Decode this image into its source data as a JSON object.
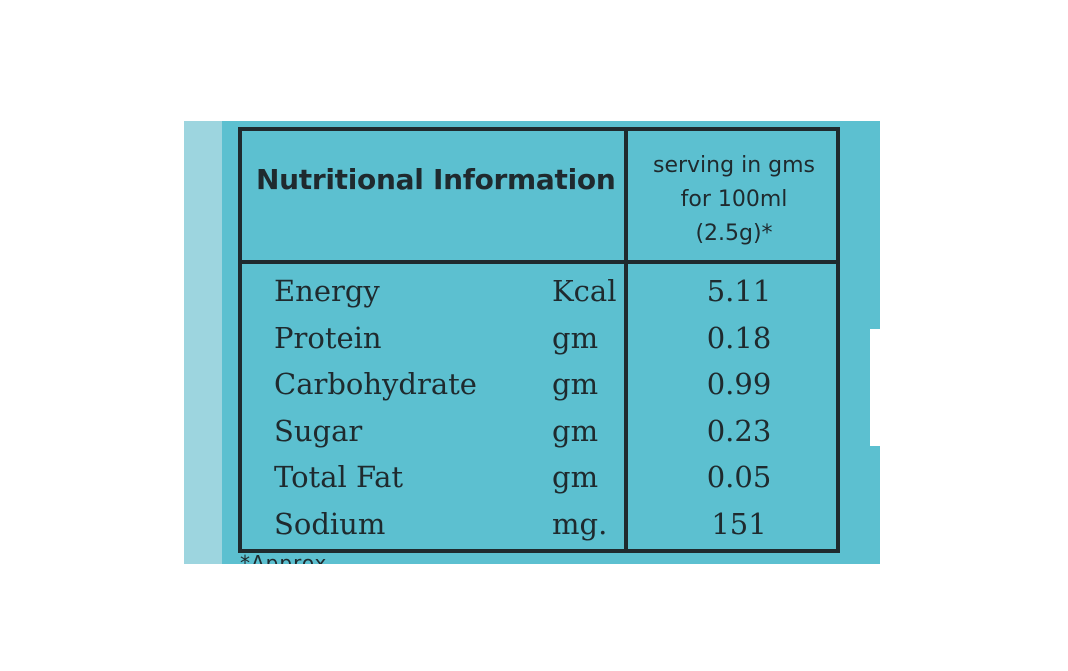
{
  "header": {
    "title": "Nutritional Information",
    "serving_line1": "serving in gms",
    "serving_line2": "for 100ml",
    "serving_line3": "(2.5g)*"
  },
  "rows": [
    {
      "name": "Energy",
      "unit": "Kcal",
      "value": "5.11"
    },
    {
      "name": "Protein",
      "unit": "gm",
      "value": "0.18"
    },
    {
      "name": "Carbohydrate",
      "unit": "gm",
      "value": "0.99"
    },
    {
      "name": "Sugar",
      "unit": "gm",
      "value": "0.23"
    },
    {
      "name": "Total Fat",
      "unit": "gm",
      "value": "0.05"
    },
    {
      "name": "Sodium",
      "unit": "mg.",
      "value": "151"
    }
  ],
  "footnote": "*Approx. ",
  "colors": {
    "background": "#5cc0d0",
    "ink": "#1f2a2e",
    "left_strip": "#9dd5df"
  }
}
